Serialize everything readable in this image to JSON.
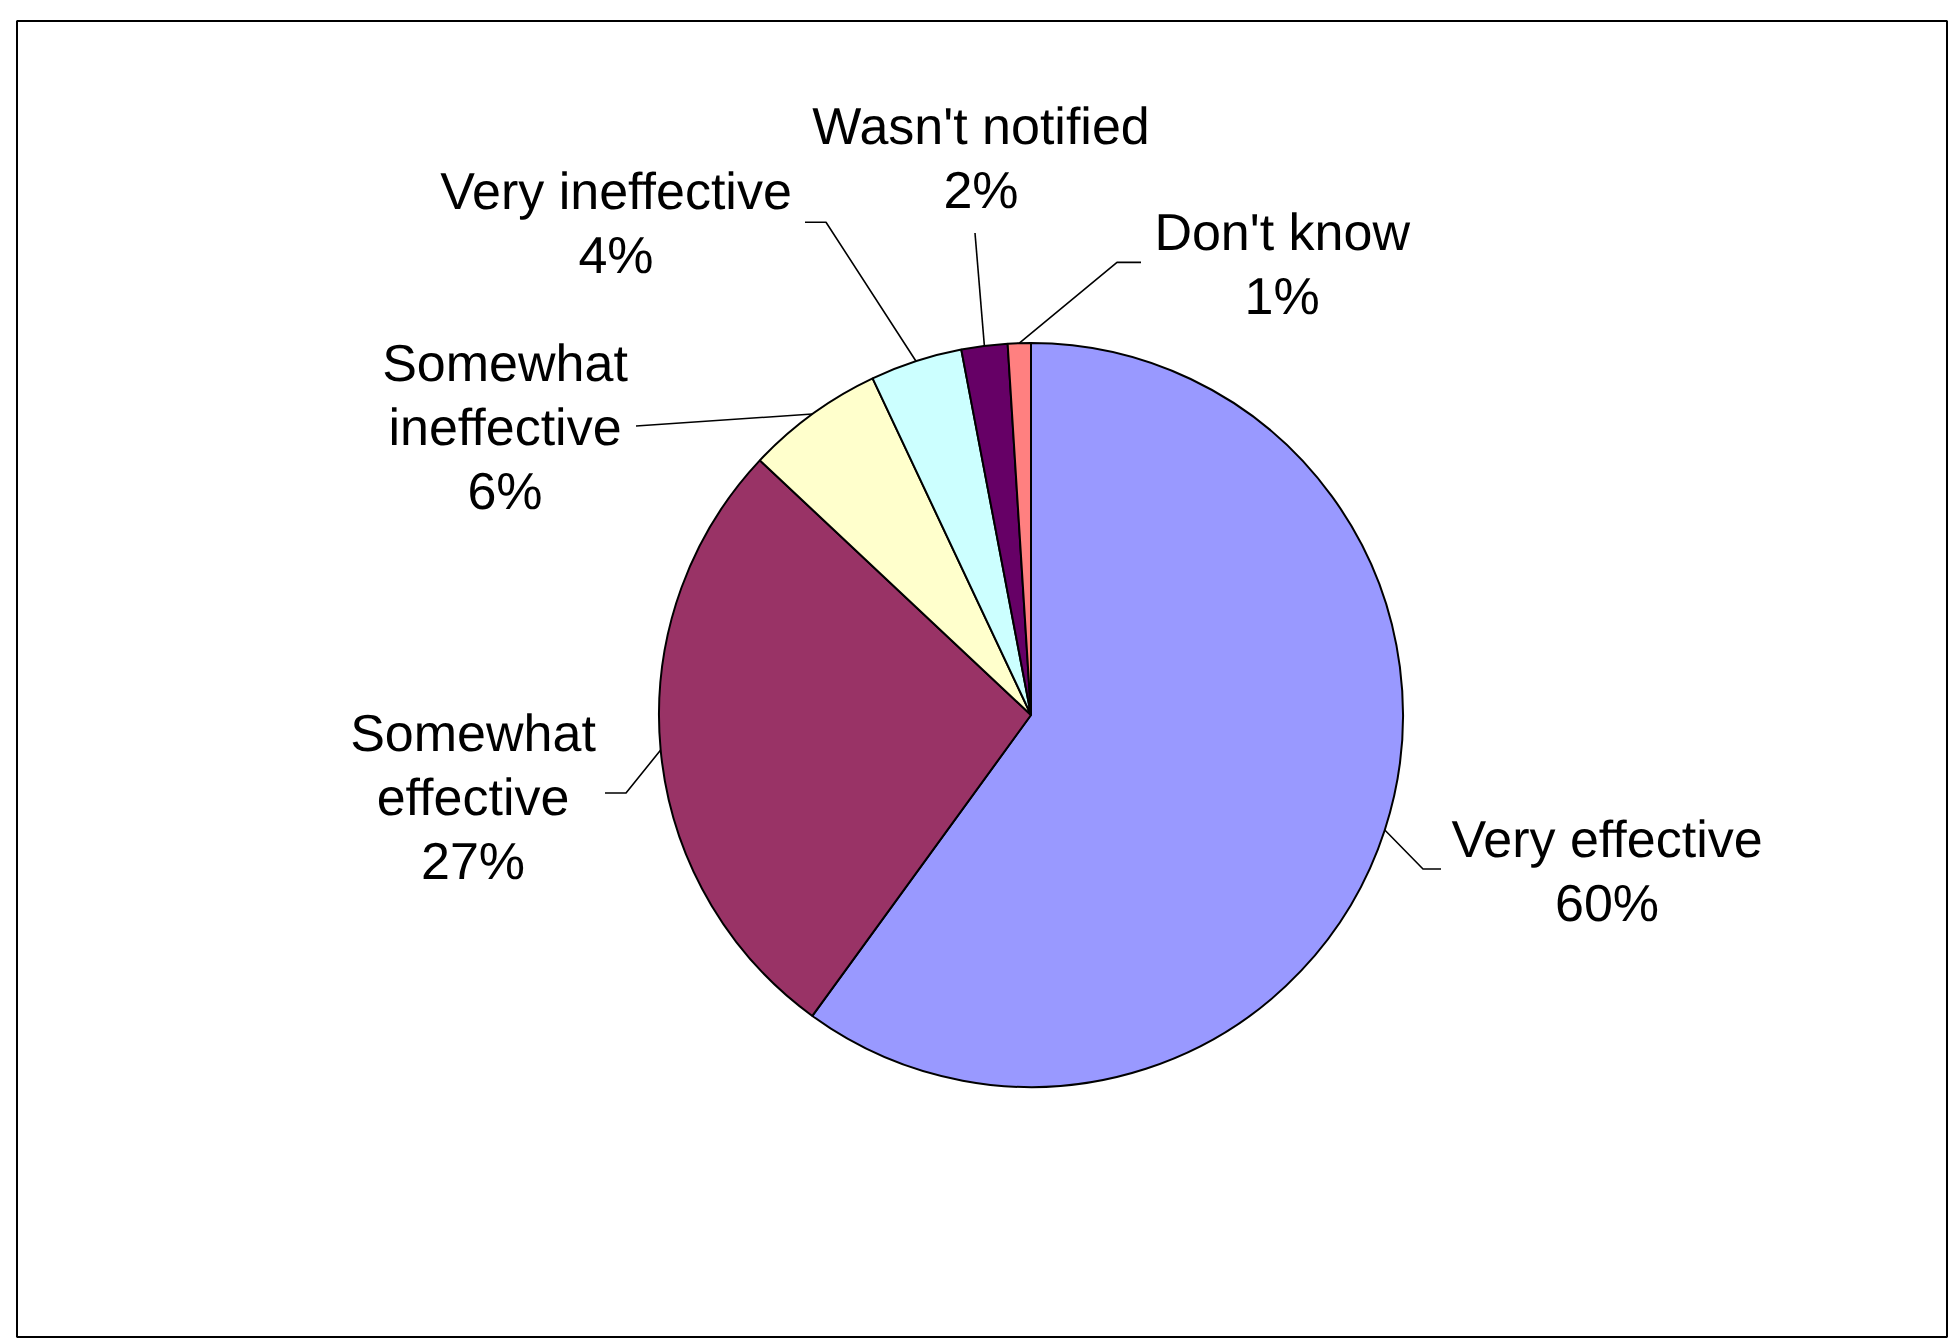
{
  "chart_data": {
    "type": "pie",
    "categories": [
      "Very effective",
      "Somewhat effective",
      "Somewhat ineffective",
      "Very ineffective",
      "Wasn't notified",
      "Don't know"
    ],
    "values": [
      60,
      27,
      6,
      4,
      2,
      1
    ],
    "colors": [
      "#9999ff",
      "#993366",
      "#ffffcc",
      "#ccffff",
      "#660066",
      "#ff8080"
    ],
    "value_labels": [
      "60%",
      "27%",
      "6%",
      "4%",
      "2%",
      "1%"
    ]
  }
}
